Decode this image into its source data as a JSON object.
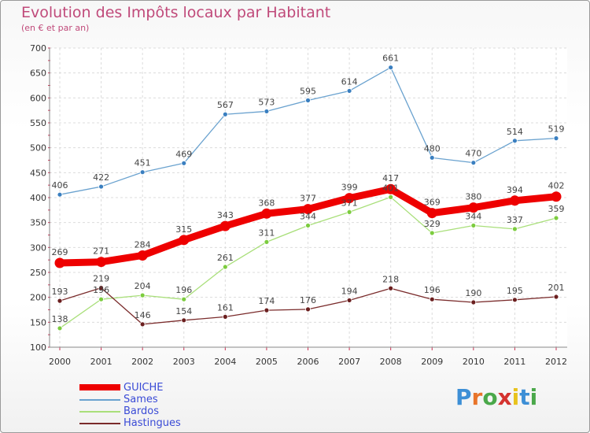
{
  "title": "Evolution des Impôts locaux par Habitant",
  "subtitle": "(en € et par an)",
  "logo": {
    "text": "Proxiti",
    "letter_colors": [
      "#3d8fd6",
      "#e8742a",
      "#4aa84a",
      "#d4332f",
      "#e8c21c",
      "#3d8fd6",
      "#4aa84a"
    ]
  },
  "chart_data": {
    "type": "line",
    "title": "Evolution des Impôts locaux par Habitant",
    "subtitle": "(en € et par an)",
    "x": [
      "2000",
      "2001",
      "2002",
      "2003",
      "2004",
      "2005",
      "2006",
      "2007",
      "2008",
      "2009",
      "2010",
      "2011",
      "2012"
    ],
    "ylim": [
      100,
      700
    ],
    "yticks": [
      100,
      150,
      200,
      250,
      300,
      350,
      400,
      450,
      500,
      550,
      600,
      650,
      700
    ],
    "grid": true,
    "legend_position": "bottom-left",
    "series": [
      {
        "name": "GUICHE",
        "color": "#ee0000",
        "thick": true,
        "values": [
          269,
          271,
          284,
          315,
          343,
          368,
          377,
          399,
          417,
          369,
          380,
          394,
          402
        ]
      },
      {
        "name": "Sames",
        "color": "#6aa2cf",
        "marker": "#3a7fc0",
        "thick": false,
        "values": [
          406,
          422,
          451,
          469,
          567,
          573,
          595,
          614,
          661,
          480,
          470,
          514,
          519
        ]
      },
      {
        "name": "Bardos",
        "color": "#a9df7a",
        "marker": "#7ccc3e",
        "thick": false,
        "values": [
          138,
          196,
          204,
          196,
          261,
          311,
          344,
          371,
          401,
          329,
          344,
          337,
          359
        ]
      },
      {
        "name": "Hastingues",
        "color": "#7a2b2b",
        "marker": "#6b1f1f",
        "thick": false,
        "values": [
          193,
          219,
          146,
          154,
          161,
          174,
          176,
          194,
          218,
          196,
          190,
          195,
          201
        ]
      }
    ]
  }
}
